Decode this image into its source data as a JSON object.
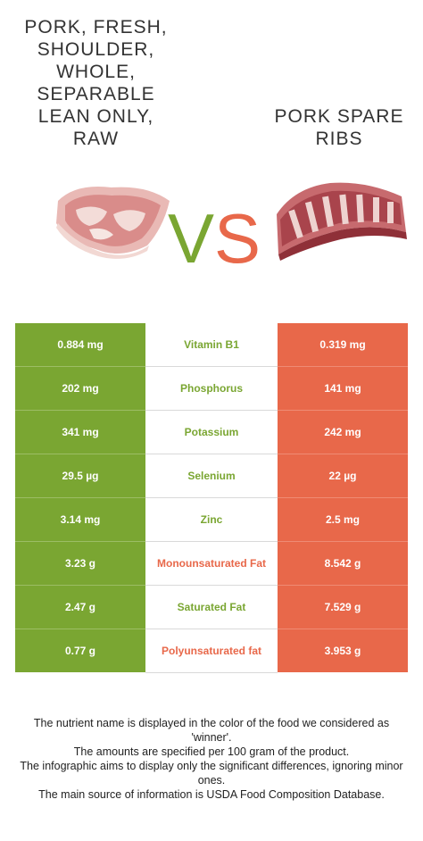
{
  "left_food": {
    "title": "PORK, FRESH, SHOULDER, WHOLE, SEPARABLE LEAN ONLY, RAW"
  },
  "right_food": {
    "title": "PORK SPARE RIBS"
  },
  "vs": {
    "v": "V",
    "s": "S"
  },
  "colors": {
    "left": "#7aa632",
    "right": "#e8684a"
  },
  "rows": [
    {
      "left": "0.884 mg",
      "nutrient": "Vitamin B1",
      "right": "0.319 mg",
      "winner": "left"
    },
    {
      "left": "202 mg",
      "nutrient": "Phosphorus",
      "right": "141 mg",
      "winner": "left"
    },
    {
      "left": "341 mg",
      "nutrient": "Potassium",
      "right": "242 mg",
      "winner": "left"
    },
    {
      "left": "29.5 µg",
      "nutrient": "Selenium",
      "right": "22 µg",
      "winner": "left"
    },
    {
      "left": "3.14 mg",
      "nutrient": "Zinc",
      "right": "2.5 mg",
      "winner": "left"
    },
    {
      "left": "3.23 g",
      "nutrient": "Monounsaturated Fat",
      "right": "8.542 g",
      "winner": "right"
    },
    {
      "left": "2.47 g",
      "nutrient": "Saturated Fat",
      "right": "7.529 g",
      "winner": "left"
    },
    {
      "left": "0.77 g",
      "nutrient": "Polyunsaturated fat",
      "right": "3.953 g",
      "winner": "right"
    }
  ],
  "footer": [
    "The nutrient name is displayed in the color of the food we considered as 'winner'.",
    "The amounts are specified per 100 gram of the product.",
    "The infographic aims to display only the significant differences, ignoring minor ones.",
    "The main source of information is USDA Food Composition Database."
  ]
}
